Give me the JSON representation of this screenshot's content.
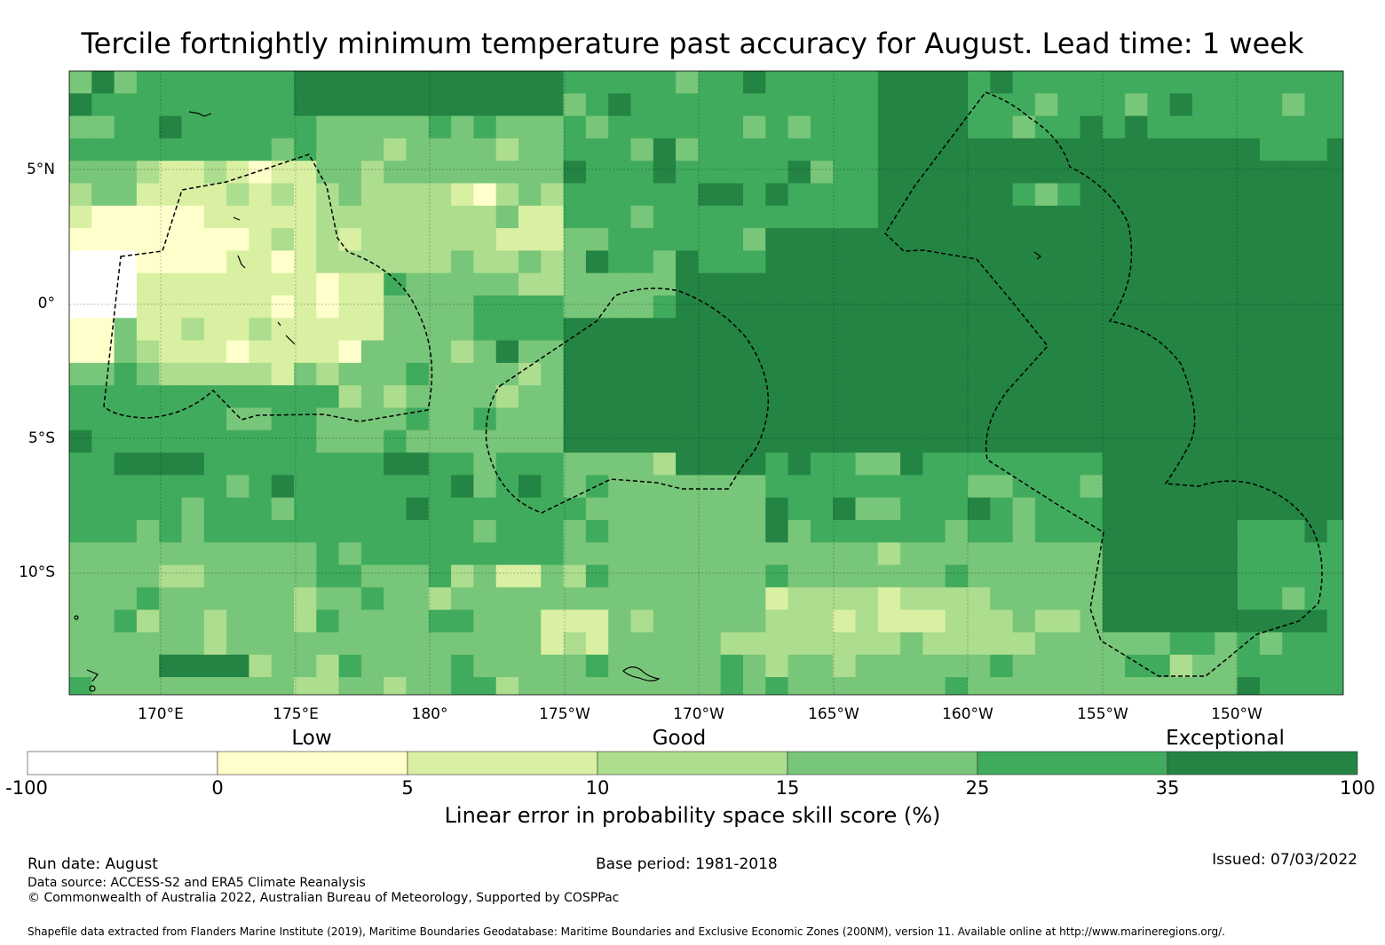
{
  "title": "Tercile fortnightly minimum temperature past accuracy for August. Lead time: 1 week",
  "map": {
    "lat_labels": [
      "5°N",
      "0°",
      "5°S",
      "10°S"
    ],
    "lon_labels": [
      "170°E",
      "175°E",
      "180°",
      "175°W",
      "170°W",
      "165°W",
      "160°W",
      "155°W",
      "150°W"
    ],
    "colors": {
      "negative": "#ffffff",
      "b0_5": "#ffffcc",
      "b5_10": "#d9f0a3",
      "b10_15": "#addd8e",
      "b15_25": "#78c679",
      "b25_35": "#41ab5d",
      "b35_100": "#238443",
      "eez_line": "#000000"
    }
  },
  "colorbar": {
    "category_labels": [
      "Low",
      "Good",
      "Exceptional"
    ],
    "ticks": [
      "-100",
      "0",
      "5",
      "10",
      "15",
      "25",
      "35",
      "100"
    ],
    "colors": [
      "#ffffff",
      "#ffffcc",
      "#d9f0a3",
      "#addd8e",
      "#78c679",
      "#41ab5d",
      "#238443"
    ],
    "title": "Linear error in probability space skill score (%)"
  },
  "footer": {
    "run_date": "Run date: August",
    "base_period": "Base period: 1981-2018",
    "issued": "Issued: 07/03/2022",
    "data_source": "Data source: ACCESS-S2 and ERA5 Climate Reanalysis",
    "copyright": "© Commonwealth of Australia 2022, Australian Bureau of Meteorology, Supported by COSPPac",
    "shapefile": "Shapefile data extracted from Flanders Marine Institute (2019), Maritime Boundaries Geodatabase: Maritime Boundaries and Exclusive Economic Zones (200NM), version 11. Available online at http://www.marineregions.org/."
  }
}
